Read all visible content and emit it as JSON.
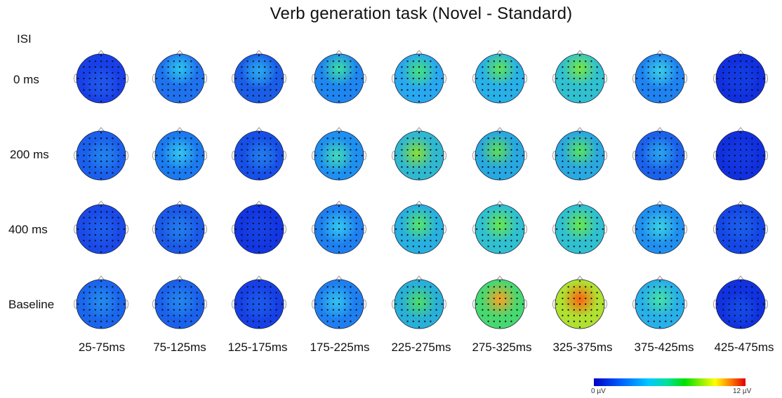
{
  "title": "Verb generation task (Novel - Standard)",
  "isi_label": "ISI",
  "rows": [
    "0 ms",
    "200 ms",
    "400 ms",
    "Baseline"
  ],
  "columns": [
    "25-75ms",
    "75-125ms",
    "125-175ms",
    "175-225ms",
    "225-275ms",
    "275-325ms",
    "325-375ms",
    "375-425ms",
    "425-475ms"
  ],
  "colorbar": {
    "min_label": "0 µV",
    "max_label": "12 µV",
    "colors": [
      "#0000c8",
      "#0060ff",
      "#00c8ff",
      "#00e0a0",
      "#00e000",
      "#a0f000",
      "#ffff00",
      "#ff8000",
      "#e00000"
    ]
  },
  "maps": [
    [
      {
        "bg": "#1840e8",
        "hot": "#2a70f0",
        "hx": 0.5,
        "hy": 0.6,
        "hi": 0.4
      },
      {
        "bg": "#1e72ee",
        "hot": "#30d8f0",
        "hx": 0.5,
        "hy": 0.3,
        "hi": 0.8
      },
      {
        "bg": "#1a5ee8",
        "hot": "#30c8f0",
        "hx": 0.5,
        "hy": 0.35,
        "hi": 0.7
      },
      {
        "bg": "#1e86f0",
        "hot": "#40e8a0",
        "hx": 0.5,
        "hy": 0.3,
        "hi": 0.9
      },
      {
        "bg": "#28a8f0",
        "hot": "#48e870",
        "hx": 0.5,
        "hy": 0.35,
        "hi": 0.9
      },
      {
        "bg": "#28b0e8",
        "hot": "#60e850",
        "hx": 0.5,
        "hy": 0.3,
        "hi": 0.95
      },
      {
        "bg": "#30c0d0",
        "hot": "#78e840",
        "hx": 0.5,
        "hy": 0.3,
        "hi": 1.0
      },
      {
        "bg": "#1e82f0",
        "hot": "#40e0e8",
        "hx": 0.5,
        "hy": 0.35,
        "hi": 0.8
      },
      {
        "bg": "#1030e0",
        "hot": "#1850e8",
        "hx": 0.5,
        "hy": 0.5,
        "hi": 0.3
      }
    ],
    [
      {
        "bg": "#1a60ec",
        "hot": "#2898f0",
        "hx": 0.55,
        "hy": 0.5,
        "hi": 0.6
      },
      {
        "bg": "#1a7af0",
        "hot": "#38d8f0",
        "hx": 0.5,
        "hy": 0.45,
        "hi": 0.8
      },
      {
        "bg": "#1650e8",
        "hot": "#2a96f0",
        "hx": 0.55,
        "hy": 0.5,
        "hi": 0.6
      },
      {
        "bg": "#1e90f0",
        "hot": "#48e8b0",
        "hx": 0.45,
        "hy": 0.5,
        "hi": 0.85
      },
      {
        "bg": "#30b8d0",
        "hot": "#88e030",
        "hx": 0.45,
        "hy": 0.45,
        "hi": 1.0
      },
      {
        "bg": "#28a8e0",
        "hot": "#60e050",
        "hx": 0.45,
        "hy": 0.4,
        "hi": 0.95
      },
      {
        "bg": "#2aa8e0",
        "hot": "#58e858",
        "hx": 0.5,
        "hy": 0.4,
        "hi": 0.95
      },
      {
        "bg": "#1a62ec",
        "hot": "#30c0f0",
        "hx": 0.5,
        "hy": 0.45,
        "hi": 0.7
      },
      {
        "bg": "#1030e0",
        "hot": "#1848e8",
        "hx": 0.5,
        "hy": 0.5,
        "hi": 0.3
      }
    ],
    [
      {
        "bg": "#1a4ae8",
        "hot": "#2070f0",
        "hx": 0.5,
        "hy": 0.5,
        "hi": 0.5
      },
      {
        "bg": "#1a5ae8",
        "hot": "#2890f0",
        "hx": 0.5,
        "hy": 0.5,
        "hi": 0.6
      },
      {
        "bg": "#1236e2",
        "hot": "#1a50e8",
        "hx": 0.5,
        "hy": 0.5,
        "hi": 0.4
      },
      {
        "bg": "#1e80f0",
        "hot": "#38d8f0",
        "hx": 0.5,
        "hy": 0.45,
        "hi": 0.8
      },
      {
        "bg": "#28b0e0",
        "hot": "#58e860",
        "hx": 0.5,
        "hy": 0.4,
        "hi": 0.95
      },
      {
        "bg": "#30c0d0",
        "hot": "#68e848",
        "hx": 0.5,
        "hy": 0.4,
        "hi": 1.0
      },
      {
        "bg": "#30c0d0",
        "hot": "#68e848",
        "hx": 0.5,
        "hy": 0.4,
        "hi": 1.0
      },
      {
        "bg": "#2090f0",
        "hot": "#40e0e0",
        "hx": 0.5,
        "hy": 0.45,
        "hi": 0.8
      },
      {
        "bg": "#1448e6",
        "hot": "#2070f0",
        "hx": 0.5,
        "hy": 0.45,
        "hi": 0.5
      }
    ],
    [
      {
        "bg": "#1a66ec",
        "hot": "#2aa0f0",
        "hx": 0.5,
        "hy": 0.45,
        "hi": 0.6
      },
      {
        "bg": "#1a62ec",
        "hot": "#2a9cf0",
        "hx": 0.5,
        "hy": 0.45,
        "hi": 0.6
      },
      {
        "bg": "#1640e6",
        "hot": "#2070f0",
        "hx": 0.5,
        "hy": 0.5,
        "hi": 0.5
      },
      {
        "bg": "#1e80f0",
        "hot": "#38d0f0",
        "hx": 0.45,
        "hy": 0.45,
        "hi": 0.8
      },
      {
        "bg": "#28b0d8",
        "hot": "#50e060",
        "hx": 0.5,
        "hy": 0.45,
        "hi": 0.95
      },
      {
        "bg": "#48d870",
        "hot": "#ffa020",
        "hx": 0.5,
        "hy": 0.4,
        "hi": 1.0
      },
      {
        "bg": "#b0e030",
        "hot": "#ff6010",
        "hx": 0.5,
        "hy": 0.4,
        "hi": 1.0
      },
      {
        "bg": "#28b0e8",
        "hot": "#48e8a0",
        "hx": 0.5,
        "hy": 0.4,
        "hi": 0.9
      },
      {
        "bg": "#1032e0",
        "hot": "#1a60ec",
        "hx": 0.5,
        "hy": 0.6,
        "hi": 0.5
      }
    ]
  ]
}
